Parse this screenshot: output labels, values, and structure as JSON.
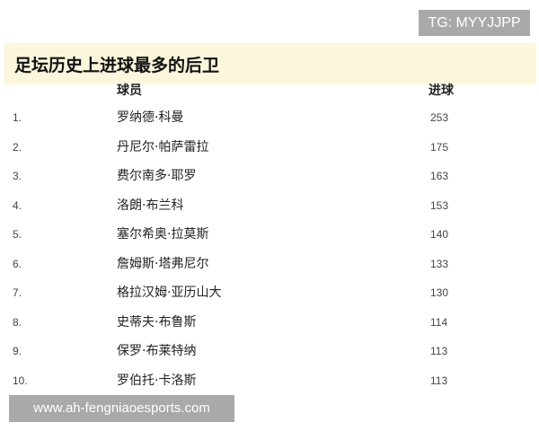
{
  "badge": "TG: MYYJJPP",
  "title": "足坛历史上进球最多的后卫",
  "columns": {
    "player": "球员",
    "goals": "进球"
  },
  "rows": [
    {
      "rank": "1.",
      "name": "罗纳德·科曼",
      "goals": "253"
    },
    {
      "rank": "2.",
      "name": "丹尼尔·帕萨雷拉",
      "goals": "175"
    },
    {
      "rank": "3.",
      "name": "费尔南多·耶罗",
      "goals": "163"
    },
    {
      "rank": "4.",
      "name": "洛朗·布兰科",
      "goals": "153"
    },
    {
      "rank": "5.",
      "name": "塞尔希奥·拉莫斯",
      "goals": "140"
    },
    {
      "rank": "6.",
      "name": "詹姆斯·塔弗尼尔",
      "goals": "133"
    },
    {
      "rank": "7.",
      "name": "格拉汉姆·亚历山大",
      "goals": "130"
    },
    {
      "rank": "8.",
      "name": "史蒂夫·布鲁斯",
      "goals": "114"
    },
    {
      "rank": "9.",
      "name": "保罗·布莱特纳",
      "goals": "113"
    },
    {
      "rank": "10.",
      "name": "罗伯托·卡洛斯",
      "goals": "113"
    }
  ],
  "watermark": "www.ah-fengniaoesports.com",
  "colors": {
    "title_band": "#fcf7dc",
    "badge_bg": "#a9a9a9"
  }
}
